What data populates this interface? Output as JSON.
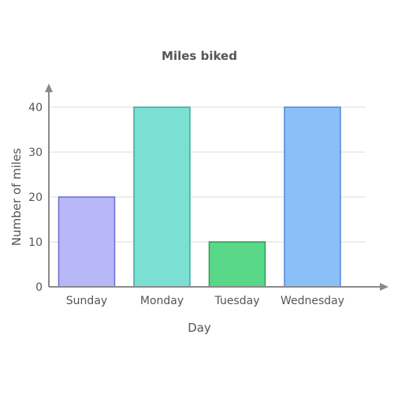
{
  "chart_data": {
    "type": "bar",
    "title": "Miles biked",
    "xlabel": "Day",
    "ylabel": "Number of miles",
    "categories": [
      "Sunday",
      "Monday",
      "Tuesday",
      "Wednesday"
    ],
    "values": [
      20,
      40,
      10,
      40
    ],
    "ylim": [
      0,
      40
    ],
    "yticks": [
      0,
      10,
      20,
      30,
      40
    ],
    "grid": true,
    "colors": [
      {
        "fill": "#b8b8f8",
        "stroke": "#6a6ad0"
      },
      {
        "fill": "#7cdfd3",
        "stroke": "#3aaa9c"
      },
      {
        "fill": "#5ad889",
        "stroke": "#2e9a55"
      },
      {
        "fill": "#8abff8",
        "stroke": "#4f88d8"
      }
    ]
  }
}
